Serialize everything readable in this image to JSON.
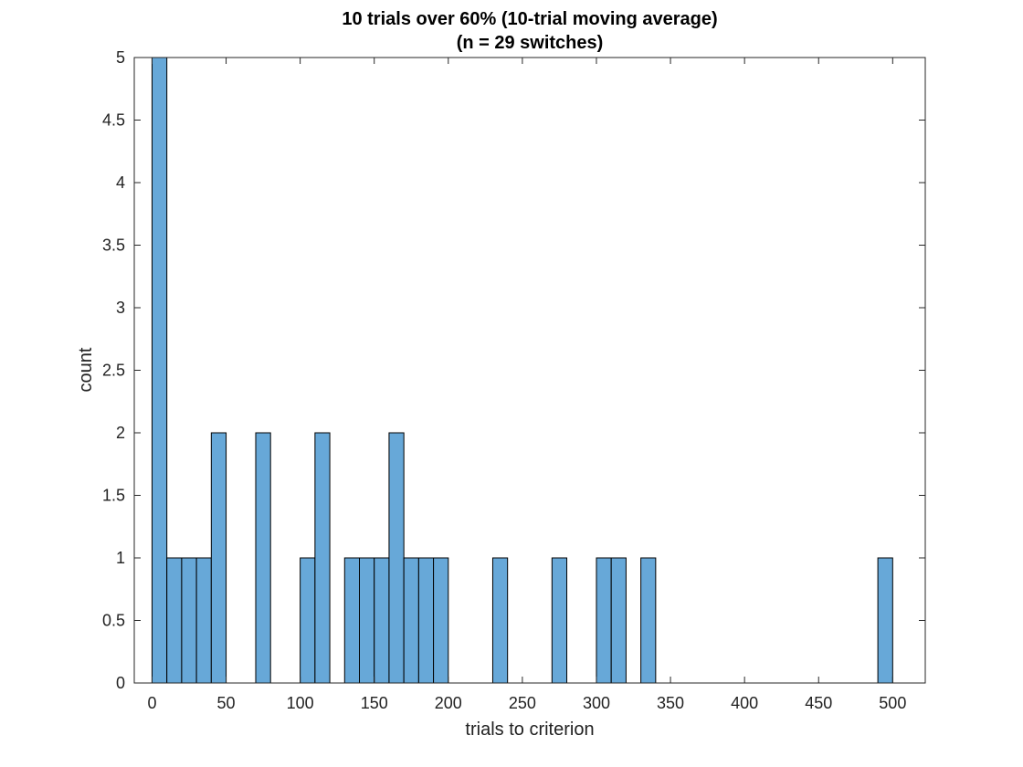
{
  "chart_data": {
    "type": "bar",
    "title": "10 trials over 60% (10-trial moving average)",
    "subtitle": "(n = 29 switches)",
    "xlabel": "trials to criterion",
    "ylabel": "count",
    "xlim": [
      -12,
      522
    ],
    "ylim": [
      0,
      5
    ],
    "bin_width": 10,
    "bar_color": "#67a8d8",
    "xticks": [
      0,
      50,
      100,
      150,
      200,
      250,
      300,
      350,
      400,
      450,
      500
    ],
    "xtick_labels": [
      "0",
      "50",
      "100",
      "150",
      "200",
      "250",
      "300",
      "350",
      "400",
      "450",
      "500"
    ],
    "yticks": [
      0,
      0.5,
      1,
      1.5,
      2,
      2.5,
      3,
      3.5,
      4,
      4.5,
      5
    ],
    "ytick_labels": [
      "0",
      "0.5",
      "1",
      "1.5",
      "2",
      "2.5",
      "3",
      "3.5",
      "4",
      "4.5",
      "5"
    ],
    "bins": [
      {
        "start": 0,
        "end": 10,
        "value": 5
      },
      {
        "start": 10,
        "end": 20,
        "value": 1
      },
      {
        "start": 20,
        "end": 30,
        "value": 1
      },
      {
        "start": 30,
        "end": 40,
        "value": 1
      },
      {
        "start": 40,
        "end": 50,
        "value": 2
      },
      {
        "start": 70,
        "end": 80,
        "value": 2
      },
      {
        "start": 100,
        "end": 110,
        "value": 1
      },
      {
        "start": 110,
        "end": 120,
        "value": 2
      },
      {
        "start": 130,
        "end": 140,
        "value": 1
      },
      {
        "start": 140,
        "end": 150,
        "value": 1
      },
      {
        "start": 150,
        "end": 160,
        "value": 1
      },
      {
        "start": 160,
        "end": 170,
        "value": 2
      },
      {
        "start": 170,
        "end": 180,
        "value": 1
      },
      {
        "start": 180,
        "end": 190,
        "value": 1
      },
      {
        "start": 190,
        "end": 200,
        "value": 1
      },
      {
        "start": 230,
        "end": 240,
        "value": 1
      },
      {
        "start": 270,
        "end": 280,
        "value": 1
      },
      {
        "start": 300,
        "end": 310,
        "value": 1
      },
      {
        "start": 310,
        "end": 320,
        "value": 1
      },
      {
        "start": 330,
        "end": 340,
        "value": 1
      },
      {
        "start": 490,
        "end": 500,
        "value": 1
      }
    ]
  }
}
